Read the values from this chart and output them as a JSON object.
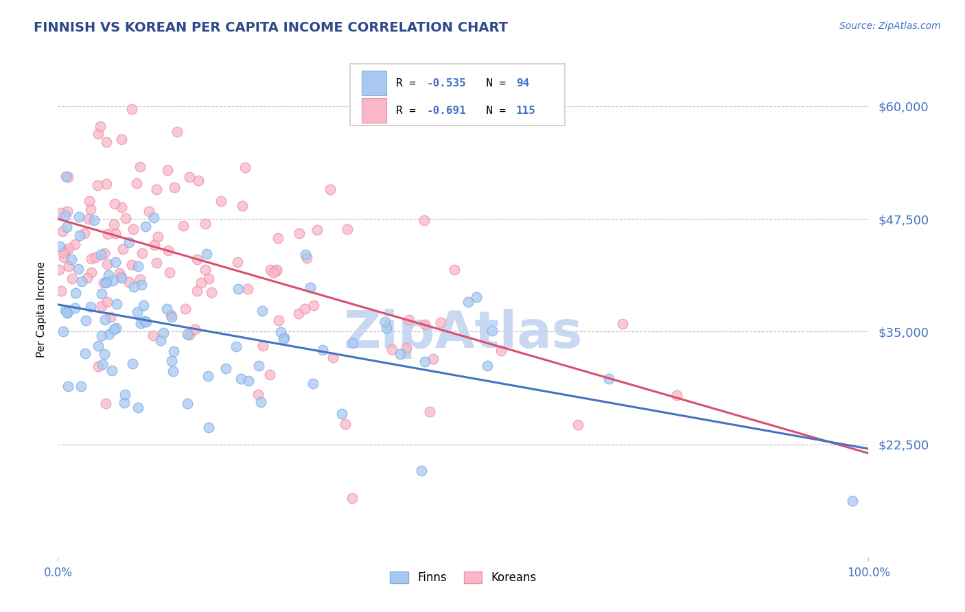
{
  "title": "FINNISH VS KOREAN PER CAPITA INCOME CORRELATION CHART",
  "source_text": "Source: ZipAtlas.com",
  "ylabel": "Per Capita Income",
  "xlim": [
    0.0,
    1.0
  ],
  "ylim": [
    10000,
    65000
  ],
  "yticks": [
    22500,
    35000,
    47500,
    60000
  ],
  "ytick_labels": [
    "$22,500",
    "$35,000",
    "$47,500",
    "$60,000"
  ],
  "finn_color": "#A8C8F0",
  "finn_edge_color": "#7EB0E8",
  "korean_color": "#F8B8C8",
  "korean_edge_color": "#F090A8",
  "finn_line_color": "#4472C4",
  "korean_line_color": "#D94F6E",
  "finn_R": -0.535,
  "finn_N": 94,
  "korean_R": -0.691,
  "korean_N": 115,
  "grid_color": "#BBBBBB",
  "title_color": "#2E4A8B",
  "tick_color": "#4472C4",
  "source_color": "#4472C4",
  "watermark_color": "#C8D8F0",
  "background_color": "#FFFFFF",
  "finn_seed": 77,
  "korean_seed": 55,
  "finn_intercept": 38000,
  "finn_slope": -16000,
  "korean_intercept": 47500,
  "korean_slope": -26000,
  "finn_residual_std": 5500,
  "korean_residual_std": 6000
}
